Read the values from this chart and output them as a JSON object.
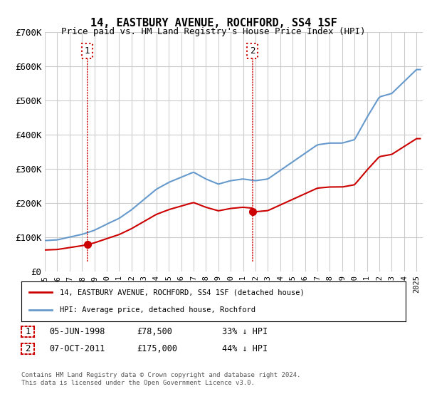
{
  "title": "14, EASTBURY AVENUE, ROCHFORD, SS4 1SF",
  "subtitle": "Price paid vs. HM Land Registry's House Price Index (HPI)",
  "ylabel_ticks": [
    "£0",
    "£100K",
    "£200K",
    "£300K",
    "£400K",
    "£500K",
    "£600K",
    "£700K"
  ],
  "ylim": [
    0,
    700000
  ],
  "xlim_start": 1995.0,
  "xlim_end": 2025.5,
  "sale1_x": 1998.43,
  "sale1_y": 78500,
  "sale1_label": "1",
  "sale1_date": "05-JUN-1998",
  "sale1_price": "£78,500",
  "sale1_hpi": "33% ↓ HPI",
  "sale2_x": 2011.77,
  "sale2_y": 175000,
  "sale2_label": "2",
  "sale2_date": "07-OCT-2011",
  "sale2_price": "£175,000",
  "sale2_hpi": "44% ↓ HPI",
  "red_color": "#cc0000",
  "blue_color": "#6699cc",
  "grid_color": "#cccccc",
  "bg_color": "#ffffff",
  "legend_label_red": "14, EASTBURY AVENUE, ROCHFORD, SS4 1SF (detached house)",
  "legend_label_blue": "HPI: Average price, detached house, Rochford",
  "footer1": "Contains HM Land Registry data © Crown copyright and database right 2024.",
  "footer2": "This data is licensed under the Open Government Licence v3.0."
}
